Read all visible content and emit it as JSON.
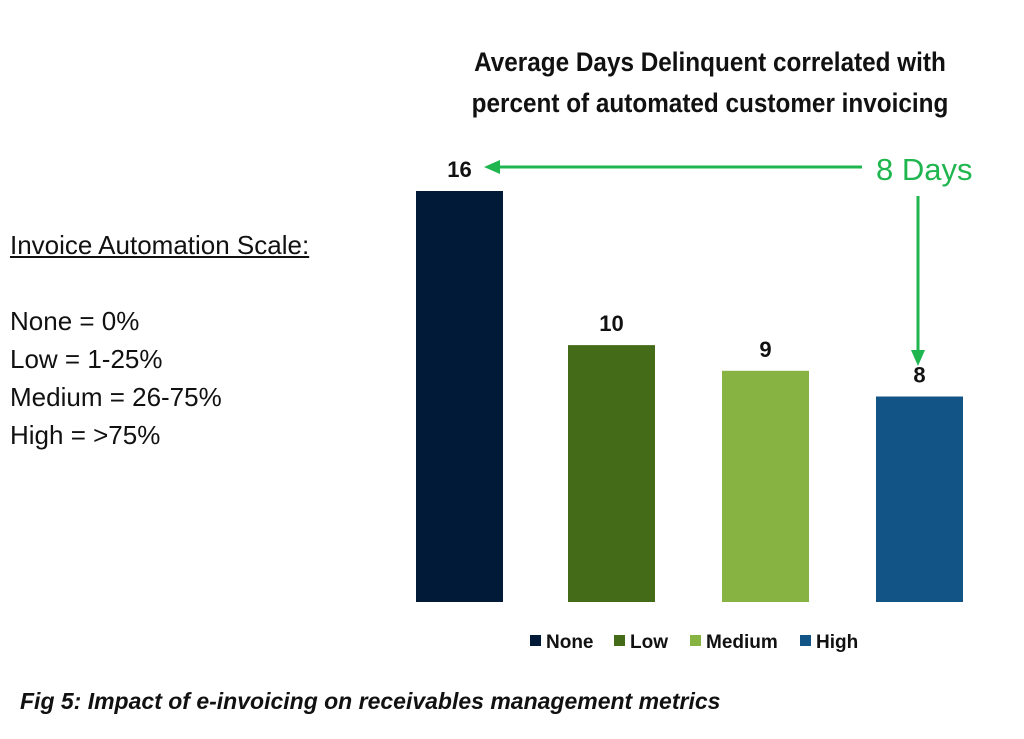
{
  "chart_data": {
    "type": "bar",
    "title": "Average Days Delinquent correlated with percent of automated customer invoicing",
    "title_lines": [
      "Average Days Delinquent correlated with",
      "percent of automated customer invoicing"
    ],
    "categories": [
      "None",
      "Low",
      "Medium",
      "High"
    ],
    "values": [
      16,
      10,
      9,
      8
    ],
    "colors": [
      "#001a37",
      "#436b18",
      "#86b342",
      "#135486"
    ],
    "data_labels": [
      "16",
      "10",
      "9",
      "8"
    ],
    "legend": {
      "placement": "bottom",
      "entries": [
        "None",
        "Low",
        "Medium",
        "High"
      ]
    },
    "grid": false,
    "ylim": [
      0,
      16
    ],
    "annotation": {
      "text": "8 Days",
      "color": "#1fb54f"
    }
  },
  "scale_legend": {
    "heading": "Invoice Automation Scale:",
    "items": [
      "None = 0%",
      "Low = 1-25%",
      "Medium = 26-75%",
      "High = >75%"
    ]
  },
  "caption": "Fig 5: Impact of e-invoicing on receivables management metrics"
}
